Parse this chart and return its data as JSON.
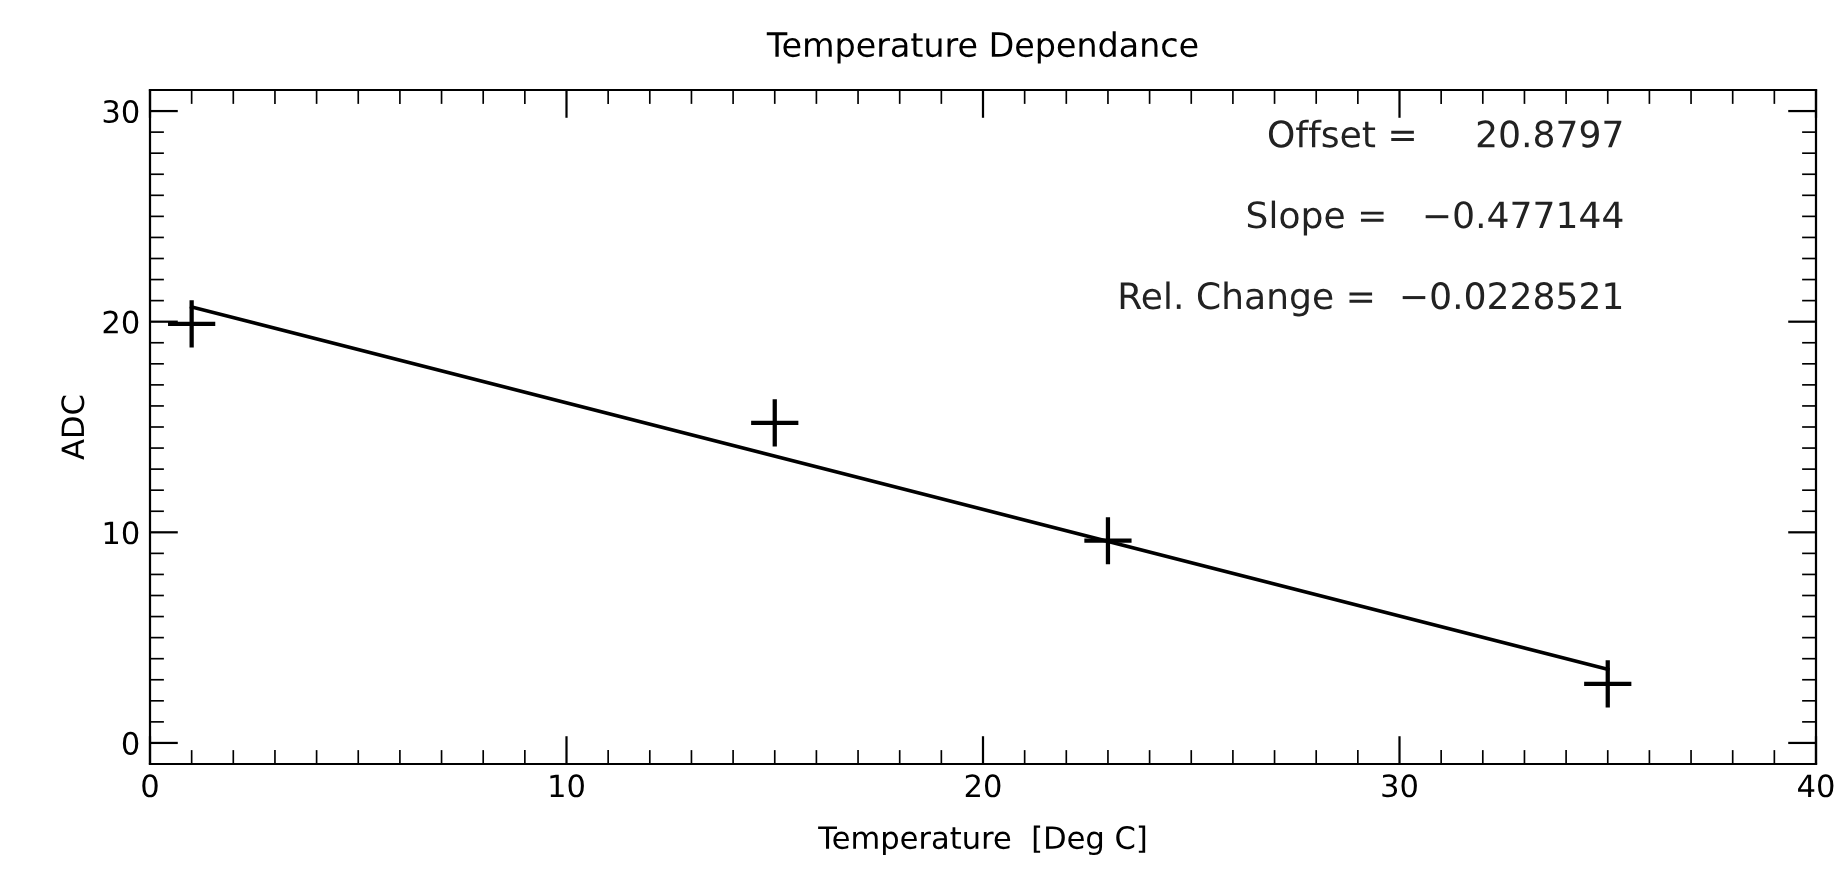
{
  "chart_data": {
    "type": "scatter",
    "title": "Temperature Dependance",
    "xlabel": "Temperature  [Deg C]",
    "ylabel": "ADC",
    "xlim": [
      0,
      40
    ],
    "xticks": [
      0,
      10,
      20,
      30,
      40
    ],
    "ylim": [
      -1,
      31
    ],
    "yticks": [
      0,
      10,
      20,
      30
    ],
    "series": [
      {
        "marker": "cross",
        "color": "#000000",
        "x": [
          1,
          15,
          23,
          35
        ],
        "values": [
          19.9,
          15.2,
          9.6,
          2.8
        ]
      },
      {
        "type": "line",
        "marker": "none",
        "line_style": "solid",
        "color": "#000000",
        "x": [
          1,
          35
        ],
        "values": [
          20.7,
          3.5
        ]
      }
    ],
    "annotations": [
      "Offset =     20.8797",
      "Slope =   −0.477144",
      "Rel. Change =  −0.0228521"
    ],
    "grid": false,
    "legend": false
  }
}
